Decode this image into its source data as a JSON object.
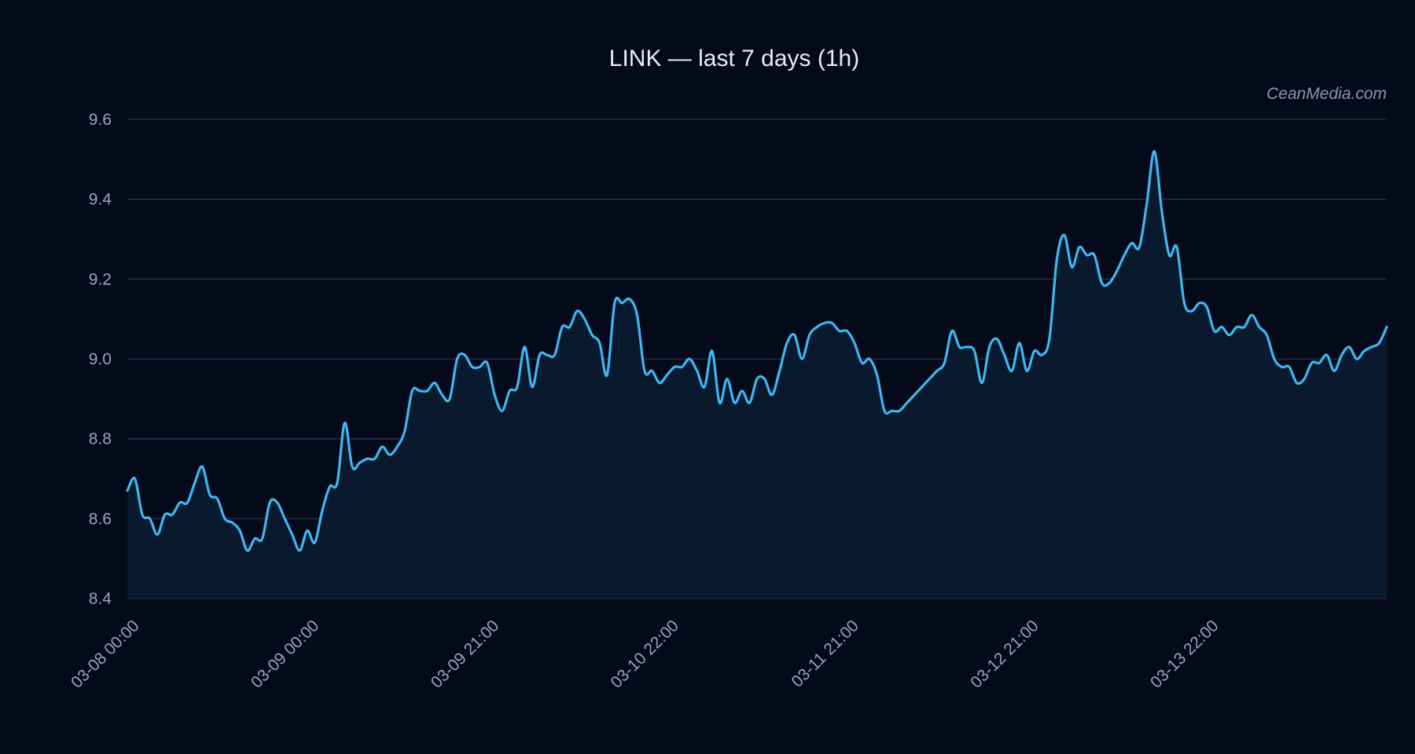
{
  "chart_data": {
    "type": "area",
    "title": "LINK — last 7 days (1h)",
    "watermark": "CeanMedia.com",
    "xlabel": "",
    "ylabel": "",
    "ylim": [
      8.4,
      9.6
    ],
    "yticks": [
      "8.4",
      "8.6",
      "8.8",
      "9.0",
      "9.2",
      "9.4",
      "9.6"
    ],
    "x_tick_labels": [
      "03-08 00:00",
      "03-09 00:00",
      "03-09 21:00",
      "03-10 22:00",
      "03-11 21:00",
      "03-12 21:00",
      "03-13 22:00"
    ],
    "grid": true,
    "legend": "none",
    "line_color": "#3fb6f0",
    "fill_color": "#0a1a2e",
    "background_color": "#050a1a",
    "series": [
      {
        "values": [
          8.67,
          8.7,
          8.61,
          8.6,
          8.56,
          8.61,
          8.61,
          8.64,
          8.64,
          8.69,
          8.73,
          8.66,
          8.65,
          8.6,
          8.59,
          8.57,
          8.52,
          8.55,
          8.55,
          8.64,
          8.64,
          8.6,
          8.56,
          8.52,
          8.57,
          8.54,
          8.62,
          8.68,
          8.69,
          8.84,
          8.73,
          8.74,
          8.75,
          8.75,
          8.78,
          8.76,
          8.78,
          8.82,
          8.92,
          8.92,
          8.92,
          8.94,
          8.91,
          8.9,
          9.0,
          9.01,
          8.98,
          8.98,
          8.99,
          8.91,
          8.87,
          8.92,
          8.93,
          9.03,
          8.93,
          9.01,
          9.01,
          9.01,
          9.08,
          9.08,
          9.12,
          9.1,
          9.06,
          9.04,
          8.96,
          9.14,
          9.14,
          9.15,
          9.11,
          8.97,
          8.97,
          8.94,
          8.96,
          8.98,
          8.98,
          9.0,
          8.97,
          8.93,
          9.02,
          8.89,
          8.95,
          8.89,
          8.92,
          8.89,
          8.95,
          8.95,
          8.91,
          8.97,
          9.04,
          9.06,
          9.0,
          9.06,
          9.08,
          9.09,
          9.09,
          9.07,
          9.07,
          9.04,
          8.99,
          9.0,
          8.96,
          8.87,
          8.87,
          8.87,
          8.89,
          8.91,
          8.93,
          8.95,
          8.97,
          8.99,
          9.07,
          9.03,
          9.03,
          9.02,
          8.94,
          9.03,
          9.05,
          9.01,
          8.97,
          9.04,
          8.97,
          9.02,
          9.01,
          9.05,
          9.25,
          9.31,
          9.23,
          9.28,
          9.26,
          9.26,
          9.19,
          9.19,
          9.22,
          9.26,
          9.29,
          9.28,
          9.39,
          9.52,
          9.37,
          9.26,
          9.28,
          9.14,
          9.12,
          9.14,
          9.13,
          9.07,
          9.08,
          9.06,
          9.08,
          9.08,
          9.11,
          9.08,
          9.06,
          9.0,
          8.98,
          8.98,
          8.94,
          8.95,
          8.99,
          8.99,
          9.01,
          8.97,
          9.01,
          9.03,
          9.0,
          9.02,
          9.03,
          9.04,
          9.08
        ]
      }
    ]
  }
}
